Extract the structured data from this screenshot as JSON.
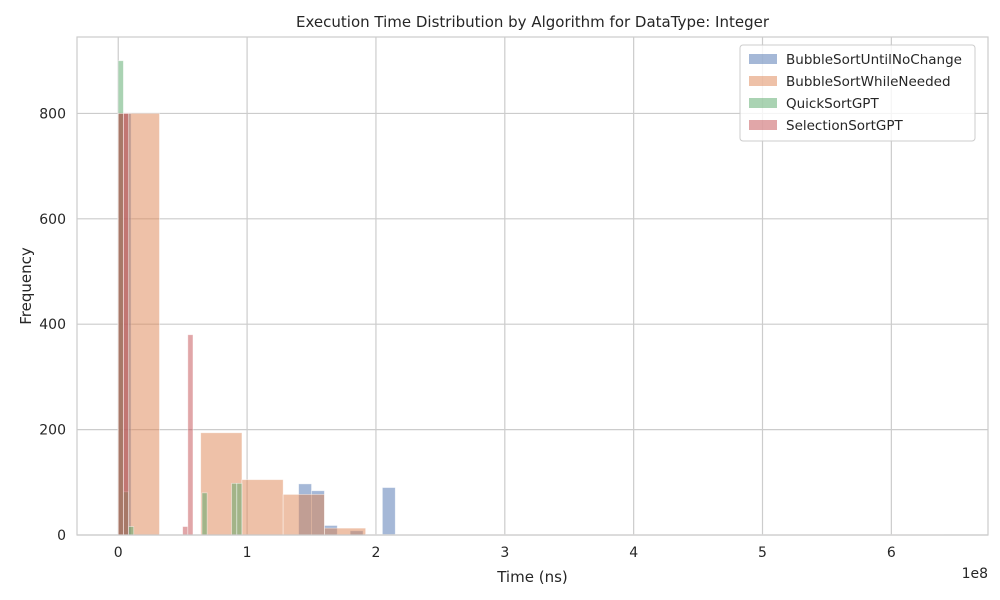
{
  "chart_data": {
    "type": "bar",
    "title": "Execution Time Distribution by Algorithm for DataType: Integer",
    "xlabel": "Time (ns)",
    "ylabel": "Frequency",
    "x_offset_label": "1e8",
    "xlim": [
      -0.32,
      6.75
    ],
    "ylim": [
      0,
      945
    ],
    "x_ticks": [
      0,
      1,
      2,
      3,
      4,
      5,
      6
    ],
    "x_tick_labels": [
      "0",
      "1",
      "2",
      "3",
      "4",
      "5",
      "6"
    ],
    "y_ticks": [
      0,
      200,
      400,
      600,
      800
    ],
    "y_tick_labels": [
      "0",
      "200",
      "400",
      "600",
      "800"
    ],
    "grid": true,
    "legend_position": "top-right",
    "series": [
      {
        "name": "BubbleSortUntilNoChange",
        "color": "#4c72b0",
        "bins": [
          {
            "x0": 0.0,
            "x1": 0.1,
            "count": 800
          },
          {
            "x0": 1.4,
            "x1": 1.5,
            "count": 97
          },
          {
            "x0": 1.5,
            "x1": 1.6,
            "count": 84
          },
          {
            "x0": 1.6,
            "x1": 1.7,
            "count": 18
          },
          {
            "x0": 1.8,
            "x1": 1.9,
            "count": 8
          },
          {
            "x0": 2.05,
            "x1": 2.15,
            "count": 90
          }
        ]
      },
      {
        "name": "BubbleSortWhileNeeded",
        "color": "#dd8452",
        "bins": [
          {
            "x0": 0.0,
            "x1": 0.32,
            "count": 800
          },
          {
            "x0": 0.64,
            "x1": 0.96,
            "count": 194
          },
          {
            "x0": 0.96,
            "x1": 1.28,
            "count": 105
          },
          {
            "x0": 1.28,
            "x1": 1.6,
            "count": 77
          },
          {
            "x0": 1.6,
            "x1": 1.92,
            "count": 13
          },
          {
            "x0": 1.92,
            "x1": 6.4,
            "count": 1
          }
        ]
      },
      {
        "name": "QuickSortGPT",
        "color": "#55a868",
        "bins": [
          {
            "x0": 0.0,
            "x1": 0.04,
            "count": 900
          },
          {
            "x0": 0.04,
            "x1": 0.08,
            "count": 82
          },
          {
            "x0": 0.08,
            "x1": 0.12,
            "count": 16
          },
          {
            "x0": 0.65,
            "x1": 0.69,
            "count": 80
          },
          {
            "x0": 0.88,
            "x1": 0.92,
            "count": 98
          },
          {
            "x0": 0.92,
            "x1": 0.96,
            "count": 98
          }
        ]
      },
      {
        "name": "SelectionSortGPT",
        "color": "#c44e52",
        "bins": [
          {
            "x0": 0.0,
            "x1": 0.04,
            "count": 800
          },
          {
            "x0": 0.04,
            "x1": 0.08,
            "count": 800
          },
          {
            "x0": 0.5,
            "x1": 0.54,
            "count": 16
          },
          {
            "x0": 0.54,
            "x1": 0.58,
            "count": 380
          }
        ]
      }
    ]
  }
}
